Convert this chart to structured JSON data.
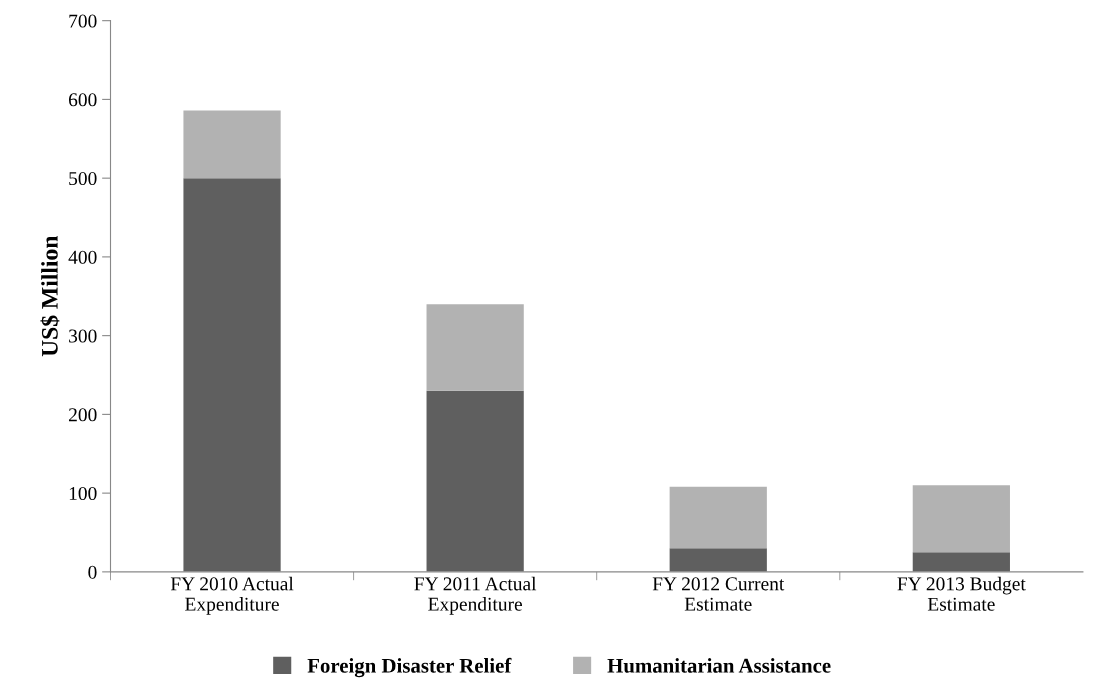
{
  "chart_data": {
    "type": "bar",
    "stacked": true,
    "ylabel": "US$ Million",
    "categories": [
      "FY 2010 Actual\nExpenditure",
      "FY 2011 Actual\nExpenditure",
      "FY 2012 Current\nEstimate",
      "FY 2013 Budget\nEstimate"
    ],
    "series": [
      {
        "name": "Foreign Disaster Relief",
        "color": "#5f5f5f",
        "values": [
          500,
          230,
          30,
          25
        ]
      },
      {
        "name": "Humanitarian Assistance",
        "color": "#b2b2b2",
        "values": [
          86,
          110,
          78,
          85
        ]
      }
    ],
    "ylim": [
      0,
      700
    ],
    "yticks": [
      0,
      100,
      200,
      300,
      400,
      500,
      600,
      700
    ],
    "grid": false,
    "legend": "bottom"
  }
}
